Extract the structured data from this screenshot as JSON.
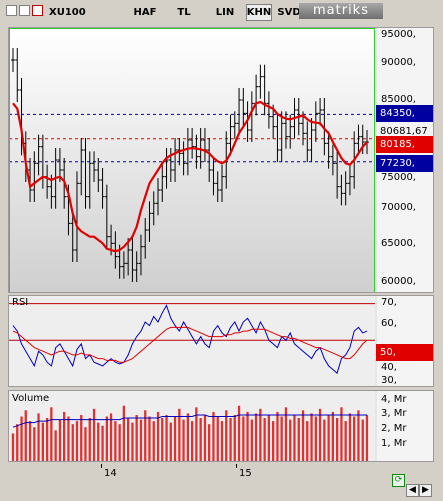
{
  "toolbar": {
    "symbol": "XU100",
    "buttons": [
      "HAF",
      "TL",
      "LIN",
      "KHN",
      "SVD"
    ],
    "active_button": "KHN",
    "logo": "matriks"
  },
  "colors": {
    "price_line": "#e00000",
    "blue_badge": "#0000a0",
    "red_badge": "#e00000",
    "rsi_line": "#0000c0",
    "volume_bars": "#e03030",
    "volume_line": "#0000c0"
  },
  "price_panel": {
    "y_ticks": [
      "95000,",
      "90000,",
      "85000,",
      "80000,",
      "75000,",
      "70000,",
      "65000,",
      "60000,"
    ],
    "badges": [
      {
        "label": "84350,",
        "color": "blue"
      },
      {
        "label": "80681,67",
        "color": "none"
      },
      {
        "label": "80185,",
        "color": "red"
      },
      {
        "label": "77230,",
        "color": "blue"
      }
    ]
  },
  "rsi_panel": {
    "title": "RSI",
    "y_ticks": [
      "70,",
      "60,",
      "50,",
      "40,",
      "30,"
    ],
    "badge": "50,"
  },
  "volume_panel": {
    "title": "Volume",
    "y_ticks": [
      "4, Mr",
      "3, Mr",
      "2, Mr",
      "1, Mr"
    ]
  },
  "x_axis": {
    "labels": [
      "14",
      "15"
    ]
  },
  "chart_data": {
    "type": "line",
    "title": "XU100",
    "ylim": [
      58000,
      97000
    ],
    "horizontal_levels": [
      84350,
      80681.67,
      77230
    ],
    "close": [
      92500,
      88000,
      80000,
      76000,
      73000,
      77000,
      79500,
      75000,
      73500,
      72000,
      77500,
      76000,
      72000,
      68000,
      64000,
      74000,
      79000,
      72000,
      77000,
      76000,
      74500,
      72000,
      66000,
      65000,
      63000,
      61500,
      62000,
      64000,
      61000,
      62000,
      64500,
      67000,
      69500,
      71000,
      73000,
      75000,
      77500,
      76000,
      79000,
      78500,
      77000,
      80500,
      79500,
      78000,
      80500,
      79000,
      76000,
      74000,
      73000,
      75000,
      80000,
      82500,
      83000,
      86500,
      84500,
      82000,
      86000,
      88500,
      90000,
      86000,
      84000,
      82500,
      79000,
      83000,
      81000,
      82500,
      85000,
      83000,
      81500,
      79000,
      82000,
      84500,
      85000,
      80000,
      78000,
      77000,
      73500,
      72500,
      74000,
      75000,
      80000,
      81000,
      80200,
      80185
    ],
    "sma": [
      86000,
      85200,
      82000,
      77000,
      73500,
      74000,
      74500,
      75000,
      74800,
      74500,
      74800,
      75000,
      74300,
      72500,
      69500,
      67500,
      66800,
      66400,
      66000,
      66000,
      65500,
      65000,
      64200,
      64000,
      63800,
      64000,
      64500,
      65200,
      66000,
      67500,
      70000,
      72000,
      74000,
      75000,
      76000,
      77000,
      77800,
      78200,
      78500,
      78800,
      79000,
      79200,
      79300,
      79200,
      79100,
      78900,
      78500,
      77800,
      77300,
      77000,
      77400,
      78500,
      80000,
      81500,
      82500,
      83500,
      84800,
      86000,
      86200,
      85800,
      85500,
      85200,
      84400,
      84000,
      83700,
      83600,
      83800,
      84000,
      84200,
      83600,
      83200,
      83100,
      83000,
      82200,
      81500,
      80200,
      79000,
      77800,
      77000,
      76800,
      77500,
      78500,
      79500,
      80185
    ],
    "rsi": [
      58,
      55,
      48,
      44,
      40,
      36,
      44,
      42,
      38,
      36,
      46,
      48,
      44,
      40,
      36,
      45,
      48,
      40,
      42,
      38,
      37,
      36,
      38,
      40,
      38,
      37,
      38,
      42,
      48,
      52,
      55,
      60,
      58,
      63,
      60,
      65,
      69,
      62,
      58,
      55,
      60,
      56,
      52,
      48,
      52,
      48,
      46,
      55,
      58,
      54,
      52,
      57,
      60,
      55,
      60,
      62,
      58,
      54,
      60,
      56,
      50,
      48,
      46,
      52,
      50,
      54,
      48,
      46,
      44,
      42,
      40,
      44,
      46,
      40,
      36,
      34,
      32,
      40,
      42,
      46,
      55,
      57,
      54,
      55
    ],
    "rsi_signal": [
      55,
      54,
      52,
      50,
      48,
      46,
      45,
      44,
      43,
      42,
      43,
      44,
      44,
      43,
      42,
      42,
      43,
      42,
      42,
      41,
      40,
      40,
      39,
      39,
      39,
      38,
      38,
      39,
      40,
      42,
      44,
      46,
      48,
      50,
      52,
      54,
      56,
      57,
      57,
      57,
      57,
      57,
      56,
      55,
      54,
      53,
      52,
      52,
      52,
      52,
      53,
      53,
      54,
      54,
      55,
      55,
      56,
      56,
      56,
      56,
      55,
      54,
      53,
      52,
      52,
      51,
      51,
      50,
      49,
      48,
      47,
      46,
      46,
      45,
      44,
      43,
      42,
      41,
      40,
      40,
      42,
      45,
      48,
      50
    ],
    "volume": [
      1.8,
      2.4,
      2.9,
      3.3,
      2.6,
      2.2,
      3.1,
      2.5,
      2.8,
      3.5,
      2.0,
      2.7,
      3.2,
      2.9,
      2.4,
      2.6,
      3.0,
      2.2,
      2.8,
      3.4,
      2.5,
      2.3,
      2.9,
      3.1,
      2.6,
      2.4,
      3.6,
      2.8,
      2.5,
      3.0,
      2.7,
      3.3,
      2.9,
      2.6,
      3.2,
      2.8,
      3.0,
      2.5,
      2.9,
      3.4,
      2.7,
      3.1,
      2.6,
      3.5,
      2.8,
      3.0,
      2.4,
      3.2,
      2.9,
      2.6,
      3.3,
      2.8,
      3.0,
      3.6,
      2.9,
      3.2,
      2.7,
      3.1,
      3.4,
      2.8,
      3.0,
      2.6,
      3.2,
      2.9,
      3.5,
      2.7,
      3.0,
      2.8,
      3.3,
      2.6,
      3.1,
      2.9,
      3.4,
      2.7,
      3.0,
      3.2,
      2.8,
      3.5,
      2.6,
      3.1,
      2.9,
      3.3,
      2.7,
      3.0
    ],
    "volume_avg": [
      2.2,
      2.3,
      2.4,
      2.5,
      2.5,
      2.5,
      2.6,
      2.6,
      2.6,
      2.7,
      2.7,
      2.7,
      2.7,
      2.7,
      2.7,
      2.7,
      2.7,
      2.7,
      2.7,
      2.7,
      2.7,
      2.7,
      2.7,
      2.7,
      2.7,
      2.7,
      2.8,
      2.8,
      2.8,
      2.8,
      2.8,
      2.8,
      2.8,
      2.8,
      2.8,
      2.9,
      2.9,
      2.9,
      2.9,
      2.9,
      2.9,
      2.9,
      2.9,
      3.0,
      3.0,
      3.0,
      2.9,
      2.9,
      2.9,
      2.9,
      2.9,
      2.9,
      2.9,
      3.0,
      3.0,
      3.0,
      3.0,
      3.0,
      3.0,
      3.0,
      3.0,
      3.0,
      3.0,
      3.0,
      3.0,
      3.0,
      3.0,
      3.0,
      3.0,
      3.0,
      3.0,
      3.0,
      3.0,
      3.0,
      3.0,
      3.0,
      3.0,
      3.0,
      3.0,
      3.0,
      3.0,
      3.0,
      3.0,
      3.0
    ]
  }
}
